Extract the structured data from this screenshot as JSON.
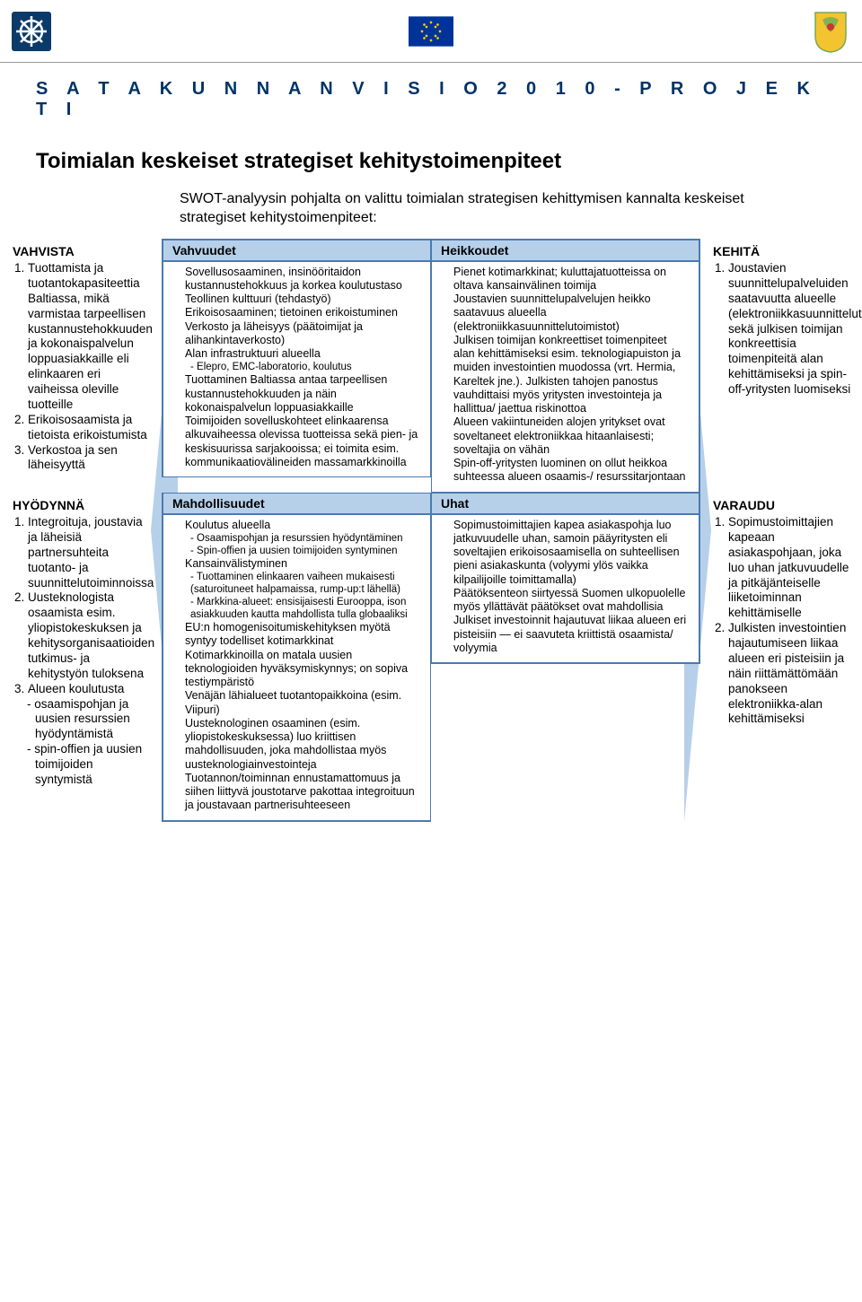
{
  "colors": {
    "accent_text": "#003366",
    "cell_border": "#4a7ab0",
    "cell_header_bg": "#b7d0ea",
    "arrow_fill": "#b7d0ea",
    "page_bg": "#ffffff"
  },
  "typography": {
    "banner_fontsize": 20,
    "banner_letter_spacing": 8,
    "title_fontsize": 24,
    "intro_fontsize": 16,
    "side_fontsize": 13.5,
    "swot_body_fontsize": 12.5,
    "swot_sub_fontsize": 11.5,
    "swot_header_fontsize": 14
  },
  "header": {
    "logos": {
      "left_alt": "wheel-logo",
      "middle_alt": "eu-flag",
      "right_alt": "coat-of-arms"
    }
  },
  "banner": "S A T A K U N N A N    V I S I O   2 0 1 0    - P R O J E K T I",
  "title": "Toimialan keskeiset strategiset kehitystoimenpiteet",
  "intro": "SWOT-analyysin pohjalta on valittu toimialan strategisen kehittymisen kannalta keskeiset strategiset kehitystoimenpiteet:",
  "left": {
    "top": {
      "heading": "VAHVISTA",
      "items": [
        "Tuottamista ja tuotantokapasiteettia Baltiassa, mikä varmistaa tarpeellisen kustannustehokkuuden ja kokonaispalvelun loppuasiakkaille eli elinkaaren eri vaiheissa oleville tuotteille",
        "Erikoisosaamista ja tietoista erikoistumista",
        "Verkostoa ja sen läheisyyttä"
      ]
    },
    "bottom": {
      "heading": "HYÖDYNNÄ",
      "items": [
        "Integroituja, joustavia ja läheisiä partnersuhteita tuotanto- ja suunnittelutoiminnoissa",
        "Uusteknologista osaamista esim. yliopistokeskuksen ja kehitysorganisaatioiden tutkimus- ja kehitystyön tuloksena",
        "Alueen koulutusta"
      ],
      "sub_dashes": [
        "- osaamispohjan ja uusien resurssien hyödyntämistä",
        "- spin-offien ja uusien toimijoiden syntymistä"
      ]
    }
  },
  "right": {
    "top": {
      "heading": "KEHITÄ",
      "items": [
        "Joustavien suunnittelupalveluiden saatavuutta alueelle (elektroniikkasuunnittelutoimistot) sekä julkisen toimijan konkreettisia toimenpiteitä alan kehittämiseksi ja spin-off-yritysten luomiseksi"
      ]
    },
    "bottom": {
      "heading": "VARAUDU",
      "items": [
        "Sopimustoimittajien kapeaan asiakaspohjaan, joka luo uhan jatkuvuudelle ja pitkäjänteiselle liiketoiminnan kehittämiselle",
        "Julkisten investointien hajautumiseen liikaa alueen eri pisteisiin ja näin riittämättömään panokseen elektroniikka-alan kehittämiseksi"
      ]
    }
  },
  "swot": {
    "vahvuudet": {
      "label": "Vahvuudet",
      "lines": [
        "Sovellusosaaminen, insinööritaidon kustannustehokkuus ja korkea koulutustaso",
        "Teollinen kulttuuri (tehdastyö)",
        "Erikoisosaaminen; tietoinen erikoistuminen",
        "Verkosto ja läheisyys (päätoimijat ja alihankintaverkosto)",
        "Alan infrastruktuuri alueella",
        {
          "sub": "- Elepro, EMC-laboratorio, koulutus"
        },
        "Tuottaminen Baltiassa antaa tarpeellisen kustannustehokkuuden ja näin kokonaispalvelun loppuasiakkaille",
        "Toimijoiden sovelluskohteet elinkaarensa alkuvaiheessa olevissa tuotteissa sekä pien- ja keskisuurissa sarjakooissa; ei toimita esim. kommunikaatiovälineiden massamarkkinoilla"
      ]
    },
    "heikkoudet": {
      "label": "Heikkoudet",
      "lines": [
        "Pienet kotimarkkinat; kuluttajatuotteissa on oltava kansainvälinen toimija",
        "Joustavien suunnittelupalvelujen heikko saatavuus alueella (elektroniikkasuunnittelutoimistot)",
        "Julkisen toimijan konkreettiset toimenpiteet alan kehittämiseksi esim. teknologiapuiston ja muiden investointien muodossa (vrt. Hermia, Kareltek jne.). Julkisten tahojen panostus vauhdittaisi myös yritysten investointeja ja hallittua/ jaettua riskinottoa",
        "Alueen vakiintuneiden alojen yritykset ovat soveltaneet elektroniikkaa hitaanlaisesti; soveltajia on vähän",
        "Spin-off-yritysten luominen on ollut heikkoa suhteessa alueen osaamis-/ resurssitarjontaan"
      ]
    },
    "mahdollisuudet": {
      "label": "Mahdollisuudet",
      "lines": [
        "Koulutus alueella",
        {
          "sub": "- Osaamispohjan ja resurssien hyödyntäminen"
        },
        {
          "sub": "- Spin-offien ja uusien toimijoiden syntyminen"
        },
        "Kansainvälistyminen",
        {
          "sub": "- Tuottaminen elinkaaren vaiheen mukaisesti (saturoituneet halpamaissa, rump-up:t lähellä)"
        },
        {
          "sub": "- Markkina-alueet: ensisijaisesti Eurooppa, ison asiakkuuden kautta mahdollista tulla globaaliksi"
        },
        "EU:n homogenisoitumiskehityksen myötä syntyy todelliset kotimarkkinat",
        "Kotimarkkinoilla on matala uusien teknologioiden hyväksymiskynnys; on sopiva testiympäristö",
        "Venäjän lähialueet tuotantopaikkoina (esim. Viipuri)",
        "Uusteknologinen osaaminen (esim. yliopistokeskuksessa) luo kriittisen mahdollisuuden, joka mahdollistaa myös uusteknologiainvestointeja",
        "Tuotannon/toiminnan ennustamattomuus ja siihen liittyvä joustotarve pakottaa integroituun ja joustavaan partnerisuhteeseen"
      ]
    },
    "uhat": {
      "label": "Uhat",
      "lines": [
        "Sopimustoimittajien kapea asiakaspohja luo jatkuvuudelle uhan, samoin pääyritysten eli soveltajien erikoisosaamisella on suhteellisen pieni asiakaskunta (volyymi ylös vaikka kilpailijoille toimittamalla)",
        "Päätöksenteon siirtyessä Suomen ulkopuolelle myös yllättävät päätökset ovat mahdollisia",
        "Julkiset investoinnit hajautuvat liikaa alueen eri pisteisiin — ei saavuteta kriittistä osaamista/ volyymia"
      ]
    }
  }
}
